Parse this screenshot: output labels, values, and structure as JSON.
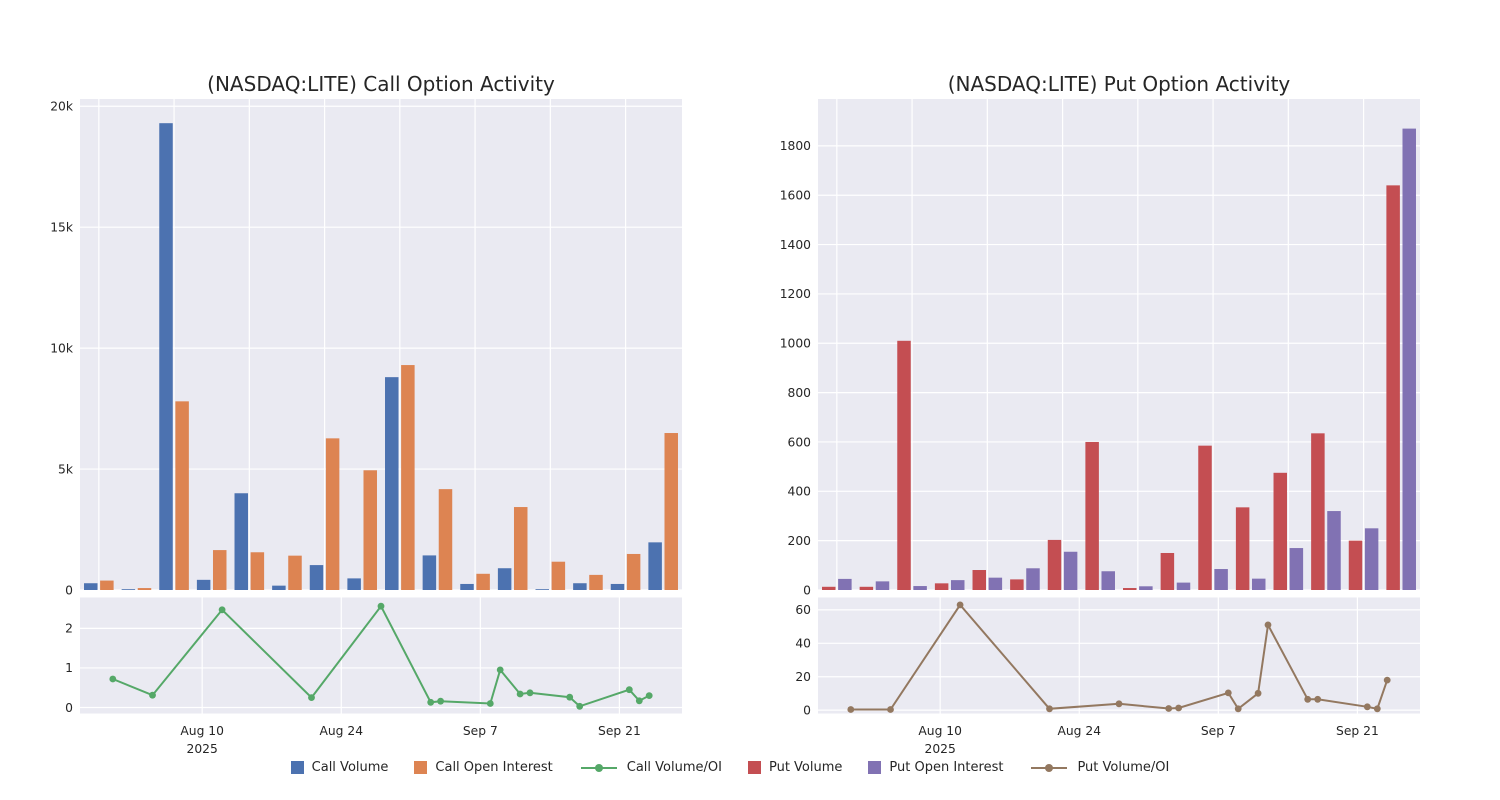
{
  "page": {
    "background": "#ffffff",
    "text_color": "#262626",
    "plot_background": "#eaeaf2",
    "grid_color": "#ffffff"
  },
  "legend": {
    "items": [
      {
        "label": "Call Volume",
        "color": "#4c72b0",
        "type": "square"
      },
      {
        "label": "Call Open Interest",
        "color": "#dd8452",
        "type": "square"
      },
      {
        "label": "Call Volume/OI",
        "color": "#55a868",
        "type": "line"
      },
      {
        "label": "Put Volume",
        "color": "#c44e52",
        "type": "square"
      },
      {
        "label": "Put Open Interest",
        "color": "#8172b3",
        "type": "square"
      },
      {
        "label": "Put Volume/OI",
        "color": "#937860",
        "type": "line"
      }
    ]
  },
  "chart_data": [
    {
      "type": "bar",
      "title": "(NASDAQ:LITE) Call Option Activity",
      "categories": [
        "Aug 1",
        "Aug 5",
        "Aug 12",
        "Aug 21",
        "Aug 28",
        "Sep 2",
        "Sep 3",
        "Sep 8",
        "Sep 9",
        "Sep 11",
        "Sep 12",
        "Sep 16",
        "Sep 17",
        "Sep 22",
        "Sep 23",
        "Sep 24"
      ],
      "day_offsets": [
        0,
        4,
        11,
        20,
        27,
        32,
        33,
        38,
        39,
        41,
        42,
        46,
        47,
        52,
        53,
        54
      ],
      "series": [
        {
          "name": "Call Volume",
          "type": "bar",
          "color": "#4c72b0",
          "values": [
            280,
            25,
            19300,
            420,
            4000,
            180,
            1030,
            480,
            8800,
            1430,
            250,
            900,
            30,
            280,
            250,
            1970
          ]
        },
        {
          "name": "Call Open Interest",
          "type": "bar",
          "color": "#dd8452",
          "values": [
            390,
            80,
            7800,
            1650,
            1560,
            1420,
            6270,
            4950,
            9300,
            4170,
            670,
            3430,
            1170,
            625,
            1490,
            6490
          ]
        },
        {
          "name": "Call Volume/OI",
          "type": "line",
          "subplot": "ratio",
          "color": "#55a868",
          "values": [
            0.72,
            0.31,
            2.47,
            0.25,
            2.56,
            0.13,
            0.16,
            0.1,
            0.95,
            0.34,
            0.37,
            0.26,
            0.03,
            0.45,
            0.17,
            0.3
          ]
        }
      ],
      "main_axis": {
        "ylim": [
          0,
          20300
        ],
        "ticks": [
          0,
          5000,
          10000,
          15000,
          20000
        ],
        "tick_labels": [
          "0",
          "5k",
          "10k",
          "15k",
          "20k"
        ],
        "grid": true
      },
      "ratio_axis": {
        "ylim": [
          -0.152,
          2.78
        ],
        "ticks": [
          0,
          1,
          2
        ],
        "tick_labels": [
          "0",
          "1",
          "2"
        ],
        "grid": true
      },
      "x_axis": {
        "tick_labels": [
          "Aug 10",
          "Aug 24",
          "Sep 7",
          "Sep 21"
        ],
        "tick_days": [
          9,
          23,
          37,
          51
        ],
        "year_label": "2025",
        "range_days": [
          -3.3,
          57.3
        ],
        "legend_position": "bottom-center"
      }
    },
    {
      "type": "bar",
      "title": "(NASDAQ:LITE) Put Option Activity",
      "categories": [
        "Aug 1",
        "Aug 5",
        "Aug 12",
        "Aug 21",
        "Aug 28",
        "Sep 2",
        "Sep 3",
        "Sep 8",
        "Sep 9",
        "Sep 11",
        "Sep 12",
        "Sep 16",
        "Sep 17",
        "Sep 22",
        "Sep 23",
        "Sep 24"
      ],
      "day_offsets": [
        0,
        4,
        11,
        20,
        27,
        32,
        33,
        38,
        39,
        41,
        42,
        46,
        47,
        52,
        53,
        54
      ],
      "series": [
        {
          "name": "Put Volume",
          "type": "bar",
          "color": "#c44e52",
          "values": [
            13,
            13,
            1010,
            27,
            81,
            43,
            203,
            600,
            8,
            150,
            585,
            335,
            475,
            635,
            200,
            1640
          ]
        },
        {
          "name": "Put Open Interest",
          "type": "bar",
          "color": "#8172b3",
          "values": [
            45,
            35,
            16,
            40,
            50,
            88,
            155,
            76,
            15,
            30,
            85,
            46,
            170,
            320,
            250,
            1870
          ]
        },
        {
          "name": "Put Volume/OI",
          "type": "line",
          "subplot": "ratio",
          "color": "#937860",
          "values": [
            0.4,
            0.4,
            63,
            0.8,
            3.8,
            1.0,
            1.3,
            10.3,
            0.8,
            10.1,
            51,
            6.5,
            6.5,
            2.0,
            0.8,
            18
          ]
        }
      ],
      "main_axis": {
        "ylim": [
          0,
          1990
        ],
        "ticks": [
          0,
          200,
          400,
          600,
          800,
          1000,
          1200,
          1400,
          1600,
          1800
        ],
        "tick_labels": [
          "0",
          "200",
          "400",
          "600",
          "800",
          "1000",
          "1200",
          "1400",
          "1600",
          "1800"
        ],
        "grid": true
      },
      "ratio_axis": {
        "ylim": [
          -2,
          67.4
        ],
        "ticks": [
          0,
          20,
          40,
          60
        ],
        "tick_labels": [
          "0",
          "20",
          "40",
          "60"
        ],
        "grid": true
      },
      "x_axis": {
        "tick_labels": [
          "Aug 10",
          "Aug 24",
          "Sep 7",
          "Sep 21"
        ],
        "tick_days": [
          9,
          23,
          37,
          51
        ],
        "year_label": "2025",
        "range_days": [
          -3.3,
          57.3
        ],
        "legend_position": "bottom-center"
      }
    }
  ]
}
